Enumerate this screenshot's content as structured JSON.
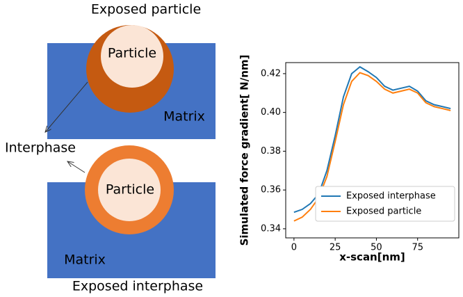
{
  "diagram": {
    "top_title": "Exposed particle",
    "top_particle": "Particle",
    "top_matrix": "Matrix",
    "interphase": "Interphase",
    "bottom_particle": "Particle",
    "bottom_matrix": "Matrix",
    "bottom_title": "Exposed interphase"
  },
  "chart_data": {
    "type": "line",
    "x": [
      0,
      5,
      10,
      15,
      20,
      25,
      30,
      35,
      40,
      45,
      50,
      55,
      60,
      65,
      70,
      75,
      80,
      85,
      90,
      95
    ],
    "series": [
      {
        "name": "Exposed interphase",
        "color": "#1f77b4",
        "values": [
          0.3485,
          0.35,
          0.353,
          0.358,
          0.37,
          0.388,
          0.408,
          0.42,
          0.4235,
          0.421,
          0.418,
          0.4135,
          0.4115,
          0.4125,
          0.4135,
          0.411,
          0.406,
          0.404,
          0.403,
          0.402
        ]
      },
      {
        "name": "Exposed particle",
        "color": "#ff7f0e",
        "values": [
          0.344,
          0.346,
          0.35,
          0.356,
          0.367,
          0.385,
          0.404,
          0.416,
          0.4205,
          0.419,
          0.416,
          0.412,
          0.41,
          0.411,
          0.412,
          0.41,
          0.405,
          0.403,
          0.402,
          0.401
        ]
      }
    ],
    "xlabel": "x-scan[nm]",
    "ylabel": "Simulated force gradient[ N/nm]",
    "xlim": [
      -5,
      100
    ],
    "ylim": [
      0.3353,
      0.4257
    ],
    "xticks": [
      0,
      25,
      50,
      75
    ],
    "yticks": [
      0.34,
      0.36,
      0.38,
      {
        "value": 0.4,
        "label": "0.40"
      },
      0.42
    ],
    "legend": "lower right"
  }
}
